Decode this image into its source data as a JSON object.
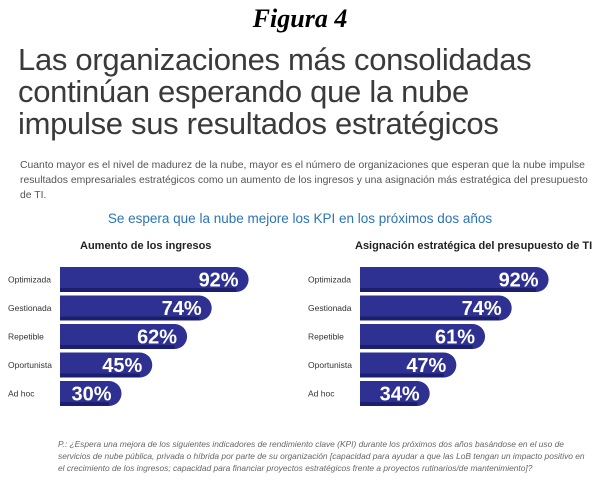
{
  "figure_label": "Figura 4",
  "headline": [
    "Las organizaciones más consolidadas",
    "continúan esperando que la nube",
    "impulse sus resultados estratégicos"
  ],
  "intro": "Cuanto mayor es el nivel de madurez de la nube, mayor es el número de organizaciones que esperan que la nube impulse resultados empresariales estratégicos como un aumento de los ingresos y una asignación más estratégica del presupuesto de TI.",
  "subtitle": "Se espera que la nube mejore los KPI en los próximos dos años",
  "footnote": "P.: ¿Espera una mejora de los siguientes indicadores de rendimiento clave (KPI) durante los próximos dos años basándose en el uso de servicios de nube pública, privada o híbrida por parte de su organización [capacidad para ayudar a que las LoB tengan un impacto positivo en el crecimiento de los ingresos; capacidad para financiar proyectos estratégicos frente a proyectos rutinarios/de mantenimiento]?",
  "colors": {
    "bar": "#2e3192",
    "bar_shade": "#1c1f6e",
    "subtitle": "#2a74b8"
  },
  "chart_data": [
    {
      "type": "bar",
      "orientation": "horizontal",
      "title": "Aumento de los ingresos",
      "categories": [
        "Optimizada",
        "Gestionada",
        "Repetible",
        "Oportunista",
        "Ad hoc"
      ],
      "values": [
        92,
        74,
        62,
        45,
        30
      ],
      "value_labels": [
        "92%",
        "74%",
        "62%",
        "45%",
        "30%"
      ],
      "xlim": [
        0,
        100
      ]
    },
    {
      "type": "bar",
      "orientation": "horizontal",
      "title": "Asignación estratégica del presupuesto de TI",
      "categories": [
        "Optimizada",
        "Gestionada",
        "Repetible",
        "Oportunista",
        "Ad hoc"
      ],
      "values": [
        92,
        74,
        61,
        47,
        34
      ],
      "value_labels": [
        "92%",
        "74%",
        "61%",
        "47%",
        "34%"
      ],
      "xlim": [
        0,
        100
      ]
    }
  ]
}
